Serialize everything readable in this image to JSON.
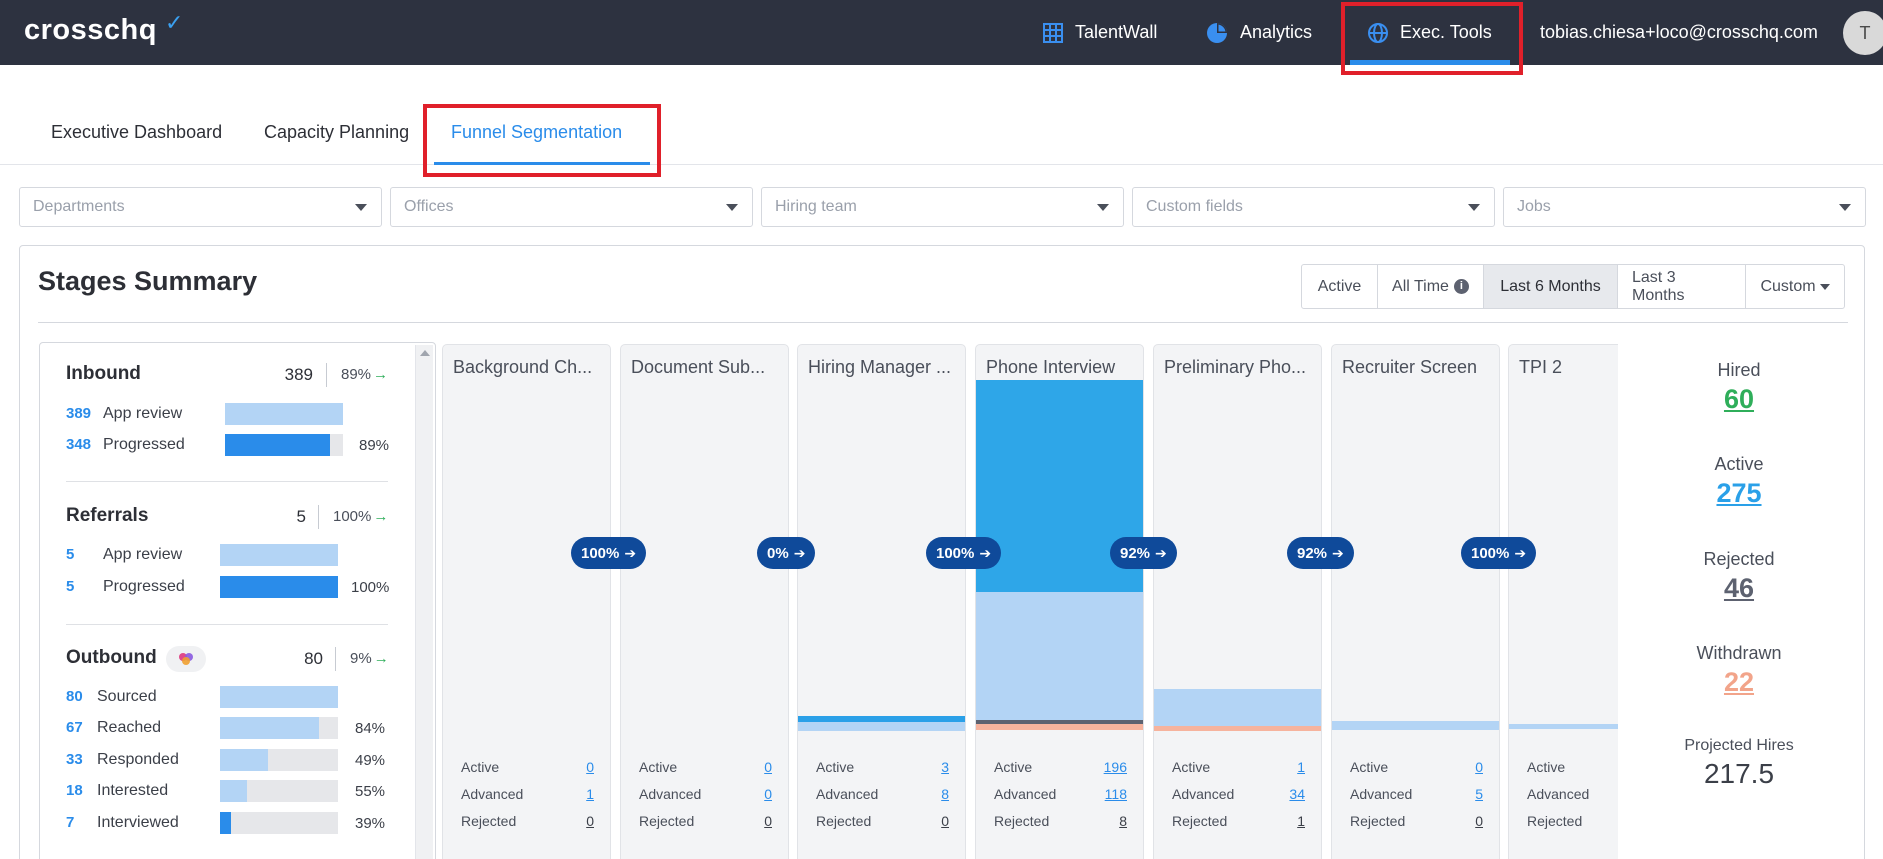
{
  "app": {
    "logo": "crosschq",
    "nav": [
      {
        "label": "TalentWall",
        "icon": "grid-icon"
      },
      {
        "label": "Analytics",
        "icon": "pie-chart-icon"
      },
      {
        "label": "Exec. Tools",
        "icon": "globe-icon"
      }
    ],
    "user_email": "tobias.chiesa+loco@crosschq.com",
    "avatar_initial": "T"
  },
  "subtabs": [
    "Executive Dashboard",
    "Capacity Planning",
    "Funnel Segmentation"
  ],
  "filters": [
    "Departments",
    "Offices",
    "Hiring team",
    "Custom fields",
    "Jobs"
  ],
  "card": {
    "title": "Stages Summary",
    "time_options": [
      "Active",
      "All Time",
      "Last 6 Months",
      "Last 3 Months",
      "Custom"
    ],
    "selected_time": "Last 6 Months",
    "info_glyph": "i"
  },
  "sources": {
    "inbound": {
      "title": "Inbound",
      "total": "389",
      "pct": "89%",
      "rows": [
        {
          "num": "389",
          "label": "App review",
          "pct": "",
          "fill": 1.0
        },
        {
          "num": "348",
          "label": "Progressed",
          "pct": "89%",
          "fill": 0.89
        }
      ]
    },
    "referrals": {
      "title": "Referrals",
      "total": "5",
      "pct": "100%",
      "rows": [
        {
          "num": "5",
          "label": "App review",
          "pct": "",
          "fill": 1.0
        },
        {
          "num": "5",
          "label": "Progressed",
          "pct": "100%",
          "fill": 1.0
        }
      ]
    },
    "outbound": {
      "title": "Outbound",
      "total": "80",
      "pct": "9%",
      "rows": [
        {
          "num": "80",
          "label": "Sourced",
          "pct": "",
          "fill": 1.0
        },
        {
          "num": "67",
          "label": "Reached",
          "pct": "84%",
          "fill": 0.84
        },
        {
          "num": "33",
          "label": "Responded",
          "pct": "49%",
          "fill": 0.41
        },
        {
          "num": "18",
          "label": "Interested",
          "pct": "55%",
          "fill": 0.23
        },
        {
          "num": "7",
          "label": "Interviewed",
          "pct": "39%",
          "fill": 0.09
        }
      ]
    }
  },
  "stage_stat_labels": [
    "Active",
    "Advanced",
    "Rejected"
  ],
  "stages": [
    {
      "title": "Background Ch...",
      "active": "0",
      "advanced": "1",
      "rejected": "0"
    },
    {
      "title": "Document Sub...",
      "active": "0",
      "advanced": "0",
      "rejected": "0"
    },
    {
      "title": "Hiring Manager ...",
      "active": "3",
      "advanced": "8",
      "rejected": "0"
    },
    {
      "title": "Phone Interview",
      "active": "196",
      "advanced": "118",
      "rejected": "8"
    },
    {
      "title": "Preliminary Pho...",
      "active": "1",
      "advanced": "34",
      "rejected": "1"
    },
    {
      "title": "Recruiter Screen",
      "active": "0",
      "advanced": "5",
      "rejected": "0"
    },
    {
      "title": "TPI 2",
      "active": "",
      "advanced": "",
      "rejected": ""
    }
  ],
  "conversions": [
    "100%",
    "0%",
    "100%",
    "92%",
    "92%",
    "100%"
  ],
  "summary": {
    "hired_label": "Hired",
    "hired": "60",
    "active_label": "Active",
    "active": "275",
    "rejected_label": "Rejected",
    "rejected": "46",
    "withdrawn_label": "Withdrawn",
    "withdrawn": "22",
    "projected_label": "Projected Hires",
    "projected": "217.5"
  },
  "colors": {
    "topbar": "#2d3240",
    "accent": "#2a8cea",
    "pill": "#0f4a9a",
    "hired": "#2fae5a",
    "active": "#2aa0e8",
    "rejected": "#5d6270",
    "withdrawn": "#f2a48a"
  }
}
